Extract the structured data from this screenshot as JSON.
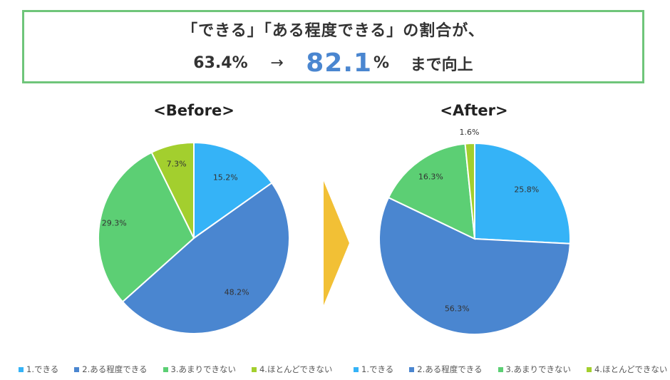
{
  "headline": {
    "line1": "「できる」「ある程度できる」の割合が、",
    "from_value": "63.4%",
    "arrow": "→",
    "to_number": "82.1",
    "to_percent": "%",
    "suffix": "まで向上"
  },
  "colors": {
    "border": "#6fc57a",
    "highlight": "#4a86d0",
    "arrow": "#f2c035",
    "slice_1": "#35b3f7",
    "slice_2": "#4a86d0",
    "slice_3": "#5ccf74",
    "slice_4": "#a3cf2e"
  },
  "chart_data": [
    {
      "type": "pie",
      "title": "<Before>",
      "categories": [
        "1.できる",
        "2.ある程度できる",
        "3.あまりできない",
        "4.ほとんどできない"
      ],
      "values": [
        15.2,
        48.2,
        29.3,
        7.3
      ],
      "labels": [
        "15.2%",
        "48.2%",
        "29.3%",
        "7.3%"
      ],
      "legend_position": "bottom"
    },
    {
      "type": "pie",
      "title": "<After>",
      "categories": [
        "1.できる",
        "2.ある程度できる",
        "3.あまりできない",
        "4.ほとんどできない"
      ],
      "values": [
        25.8,
        56.3,
        16.3,
        1.6
      ],
      "labels": [
        "25.8%",
        "56.3%",
        "16.3%",
        "1.6%"
      ],
      "legend_position": "bottom"
    }
  ]
}
